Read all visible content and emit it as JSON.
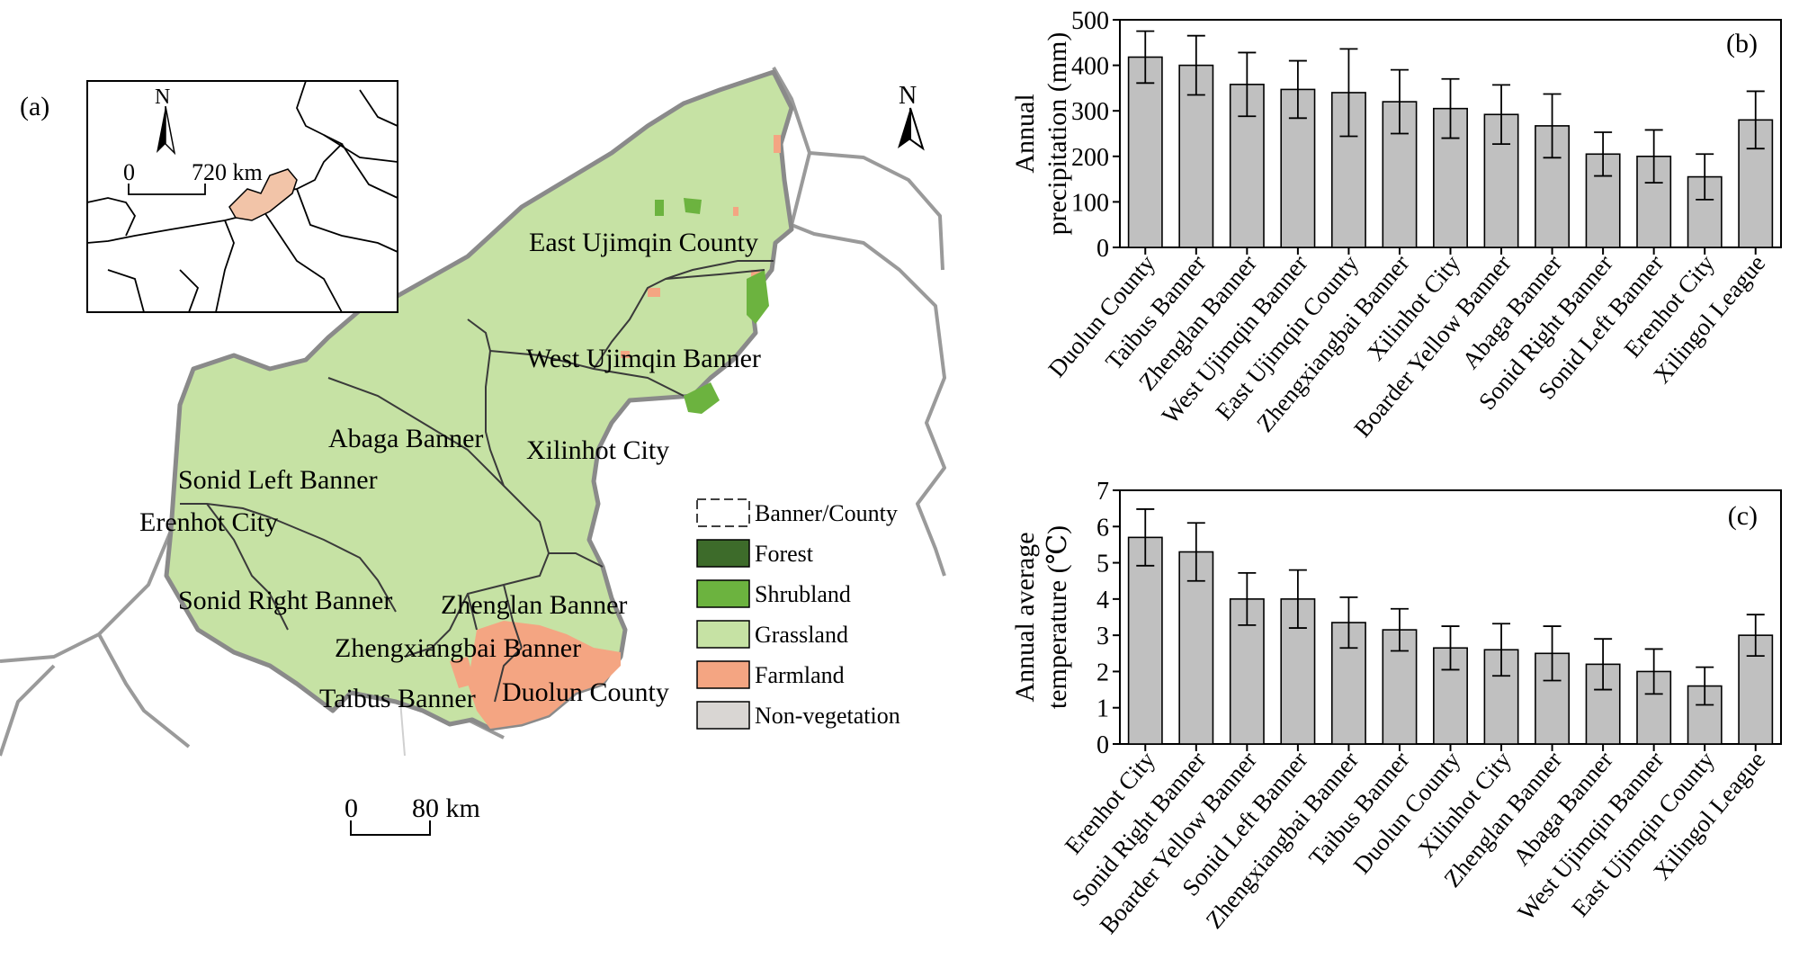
{
  "panels": {
    "a": "(a)",
    "b": "(b)",
    "c": "(c)"
  },
  "map": {
    "north": "N",
    "inset_north": "N",
    "inset_scale": {
      "zero": "0",
      "label": "720 km"
    },
    "scale": {
      "zero": "0",
      "label": "80 km"
    },
    "region_labels": [
      "East Ujimqin County",
      "West Ujimqin Banner",
      "Abaga Banner",
      "Xilinhot City",
      "Sonid Left Banner",
      "Erenhot City",
      "Sonid Right Banner",
      "Zhenglan Banner",
      "Zhengxiangbai Banner",
      "Taibus Banner",
      "Duolun County"
    ],
    "legend": [
      {
        "label": "Banner/County",
        "color": "#ffffff",
        "dashed": true
      },
      {
        "label": "Forest",
        "color": "#3d6b2a"
      },
      {
        "label": "Shrubland",
        "color": "#6cb33f"
      },
      {
        "label": "Grassland",
        "color": "#c6e2a4"
      },
      {
        "label": "Farmland",
        "color": "#f4a582"
      },
      {
        "label": "Non-vegetation",
        "color": "#d9d6d3"
      }
    ],
    "colors": {
      "grassland": "#c6e2a4",
      "farmland": "#f4a582",
      "shrubland": "#6cb33f",
      "boundary": "#8a8a8a",
      "highlight": "#f2c4a8"
    }
  },
  "chart_data": [
    {
      "type": "bar",
      "panel": "(b)",
      "ylabel": "Annual precipitation (mm)",
      "ylabel_lines": [
        "Annual",
        "precipitation (mm)"
      ],
      "ylim": [
        0,
        500
      ],
      "yticks": [
        "0",
        "100",
        "200",
        "300",
        "400",
        "500"
      ],
      "categories": [
        "Duolun County",
        "Taibus Banner",
        "Zhenglan Banner",
        "West Ujimqin Banner",
        "East Ujimqin County",
        "Zhengxiangbai Banner",
        "Xilinhot City",
        "Boarder Yellow Banner",
        "Abaga Banner",
        "Sonid Right Banner",
        "Sonid Left Banner",
        "Erenhot City",
        "Xilingol League"
      ],
      "values": [
        418,
        400,
        358,
        347,
        340,
        320,
        305,
        292,
        267,
        205,
        200,
        155,
        280
      ],
      "error": [
        57,
        65,
        70,
        63,
        96,
        70,
        65,
        65,
        70,
        48,
        58,
        50,
        63
      ],
      "bar_color": "#c0c0c0"
    },
    {
      "type": "bar",
      "panel": "(c)",
      "ylabel": "Annual average temperature (℃)",
      "ylabel_lines": [
        "Annual average",
        "temperature (℃)"
      ],
      "ylim": [
        0,
        7
      ],
      "yticks": [
        "0",
        "1",
        "2",
        "3",
        "4",
        "5",
        "6",
        "7"
      ],
      "categories": [
        "Erenhot City",
        "Sonid Right Banner",
        "Boarder Yellow Banner",
        "Sonid Left Banner",
        "Zhengxiangbai Banner",
        "Taibus Banner",
        "Duolun County",
        "Xilinhot City",
        "Zhenglan Banner",
        "Abaga Banner",
        "West Ujimqin Banner",
        "East Ujimqin County",
        "Xilingol League"
      ],
      "values": [
        5.7,
        5.3,
        4.0,
        4.0,
        3.35,
        3.15,
        2.65,
        2.6,
        2.5,
        2.2,
        2.0,
        1.6,
        3.0
      ],
      "error": [
        0.78,
        0.8,
        0.72,
        0.8,
        0.7,
        0.58,
        0.6,
        0.72,
        0.75,
        0.7,
        0.62,
        0.52,
        0.57
      ],
      "bar_color": "#c0c0c0"
    }
  ]
}
